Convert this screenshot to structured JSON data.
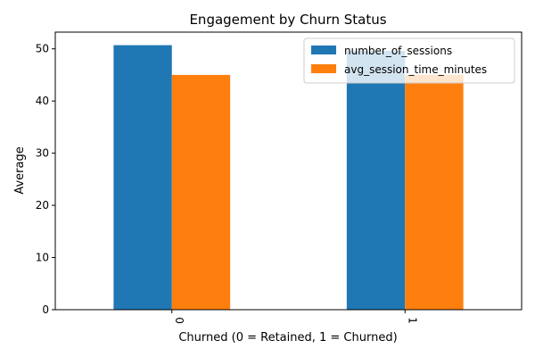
{
  "chart_data": {
    "type": "bar",
    "title": "Engagement by Churn Status",
    "xlabel": "Churned (0 = Retained, 1 = Churned)",
    "ylabel": "Average",
    "categories": [
      "0",
      "1"
    ],
    "series": [
      {
        "name": "number_of_sessions",
        "values": [
          50.7,
          49.6
        ],
        "color": "#1f77b4"
      },
      {
        "name": "avg_session_time_minutes",
        "values": [
          45.0,
          45.0
        ],
        "color": "#ff7f0e"
      }
    ],
    "ylim": [
      0,
      53.2
    ],
    "yticks": [
      0,
      10,
      20,
      30,
      40,
      50
    ],
    "legend": "top-right",
    "grid": false
  }
}
